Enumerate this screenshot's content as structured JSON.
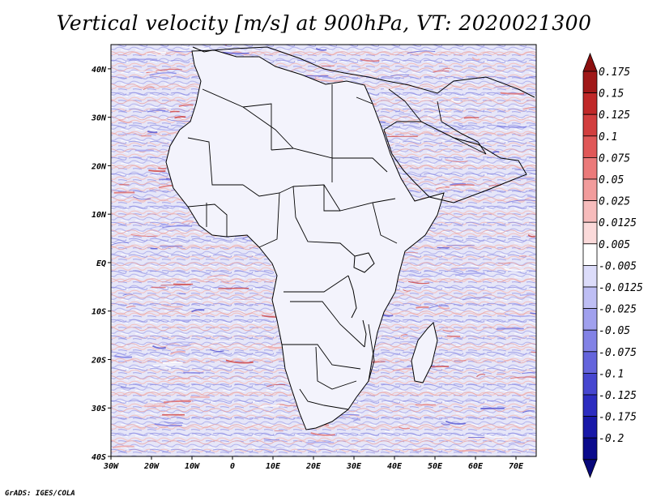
{
  "title": "Vertical velocity [m/s] at 900hPa, VT: 2020021300",
  "credit": "GrADS: IGES/COLA",
  "map": {
    "lon_range": [
      -30,
      75
    ],
    "lat_range": [
      -40,
      45
    ],
    "lat_ticks": [
      {
        "value": 40,
        "label": "40N"
      },
      {
        "value": 30,
        "label": "30N"
      },
      {
        "value": 20,
        "label": "20N"
      },
      {
        "value": 10,
        "label": "10N"
      },
      {
        "value": 0,
        "label": "EQ"
      },
      {
        "value": -10,
        "label": "10S"
      },
      {
        "value": -20,
        "label": "20S"
      },
      {
        "value": -30,
        "label": "30S"
      },
      {
        "value": -40,
        "label": "40S"
      }
    ],
    "lon_ticks": [
      {
        "value": -30,
        "label": "30W"
      },
      {
        "value": -20,
        "label": "20W"
      },
      {
        "value": -10,
        "label": "10W"
      },
      {
        "value": 0,
        "label": "0"
      },
      {
        "value": 10,
        "label": "10E"
      },
      {
        "value": 20,
        "label": "20E"
      },
      {
        "value": 30,
        "label": "30E"
      },
      {
        "value": 40,
        "label": "40E"
      },
      {
        "value": 50,
        "label": "50E"
      },
      {
        "value": 60,
        "label": "60E"
      },
      {
        "value": 70,
        "label": "70E"
      }
    ]
  },
  "colorbar": {
    "levels": [
      {
        "label": "0.175",
        "color": "#a01818"
      },
      {
        "label": "0.15",
        "color": "#c02828"
      },
      {
        "label": "0.125",
        "color": "#d23e3e"
      },
      {
        "label": "0.1",
        "color": "#e05858"
      },
      {
        "label": "0.075",
        "color": "#eb7a7a"
      },
      {
        "label": "0.05",
        "color": "#f29c9c"
      },
      {
        "label": "0.025",
        "color": "#f7bcbc"
      },
      {
        "label": "0.0125",
        "color": "#fbdada"
      },
      {
        "label": "0.005",
        "color": "#ffffff"
      },
      {
        "label": "-0.005",
        "color": "#dcdcfa"
      },
      {
        "label": "-0.0125",
        "color": "#bebef4"
      },
      {
        "label": "-0.025",
        "color": "#a0a0ee"
      },
      {
        "label": "-0.05",
        "color": "#8282e6"
      },
      {
        "label": "-0.075",
        "color": "#6464dc"
      },
      {
        "label": "-0.1",
        "color": "#4646d0"
      },
      {
        "label": "-0.125",
        "color": "#2c2cc0"
      },
      {
        "label": "-0.175",
        "color": "#1818a8"
      },
      {
        "label": "-0.2",
        "color": "#0a0a8c"
      }
    ],
    "top_color": "#8c1010",
    "bottom_color": "#08087a"
  },
  "colors": {
    "background": "#ffffff",
    "land_light": "#eef0fa",
    "coast": "#000000"
  }
}
